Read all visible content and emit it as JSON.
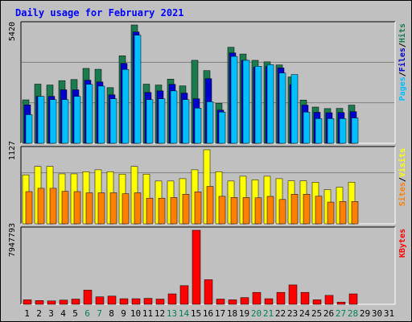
{
  "title": "Daily usage for February 2021",
  "colors": {
    "background": "#c0c0c0",
    "hits": "#1b7a4e",
    "files": "#0000cc",
    "pages": "#00bfff",
    "visits": "#ffff00",
    "sites": "#ff8000",
    "kbytes": "#ff0000",
    "weekend": "#00805a",
    "text": "#000000",
    "title": "#0000ff",
    "gridline": "#808080"
  },
  "chart_data": [
    {
      "type": "bar",
      "panel": "hits-files-pages",
      "categories": [
        "1",
        "2",
        "3",
        "4",
        "5",
        "6",
        "7",
        "8",
        "9",
        "10",
        "11",
        "12",
        "13",
        "14",
        "15",
        "16",
        "17",
        "18",
        "19",
        "20",
        "21",
        "22",
        "23",
        "24",
        "25",
        "26",
        "27",
        "28",
        "29",
        "30",
        "31"
      ],
      "ymax_label": "5420",
      "ymax": 5420,
      "legend": [
        {
          "label": "Pages",
          "color": "#00bfff"
        },
        {
          "label": "/",
          "color": "#000000"
        },
        {
          "label": "Files",
          "color": "#0000cc"
        },
        {
          "label": "/",
          "color": "#000000"
        },
        {
          "label": "Hits",
          "color": "#1b7a4e"
        }
      ],
      "series": [
        {
          "name": "Hits",
          "values": [
            1990,
            2710,
            2670,
            2870,
            2920,
            3430,
            3390,
            2550,
            4010,
            5420,
            2710,
            2670,
            2940,
            2630,
            3800,
            3330,
            1830,
            4400,
            4090,
            3800,
            3730,
            3590,
            3040,
            1980,
            1660,
            1590,
            1600,
            1750,
            null,
            null,
            null
          ]
        },
        {
          "name": "Files",
          "values": [
            1760,
            2150,
            2150,
            2450,
            2450,
            2890,
            2810,
            2220,
            3660,
            5100,
            2330,
            2400,
            2700,
            2300,
            2040,
            2960,
            1520,
            4140,
            3800,
            3490,
            3520,
            3450,
            2690,
            1750,
            1420,
            1400,
            1410,
            1450,
            null,
            null,
            null
          ]
        },
        {
          "name": "Pages",
          "values": [
            1310,
            2150,
            2000,
            2000,
            2150,
            2700,
            2620,
            2040,
            3380,
            4950,
            2000,
            2040,
            2400,
            2000,
            1610,
            1900,
            1430,
            3980,
            3800,
            3530,
            3600,
            3220,
            3150,
            1430,
            1130,
            1130,
            1130,
            1160,
            null,
            null,
            null
          ]
        }
      ]
    },
    {
      "type": "bar",
      "panel": "visits-sites",
      "categories": [
        "1",
        "2",
        "3",
        "4",
        "5",
        "6",
        "7",
        "8",
        "9",
        "10",
        "11",
        "12",
        "13",
        "14",
        "15",
        "16",
        "17",
        "18",
        "19",
        "20",
        "21",
        "22",
        "23",
        "24",
        "25",
        "26",
        "27",
        "28",
        "29",
        "30",
        "31"
      ],
      "ymax_label": "1127",
      "ymax": 1127,
      "legend": [
        {
          "label": "Sites",
          "color": "#ff8000"
        },
        {
          "label": "/",
          "color": "#000000"
        },
        {
          "label": "Visits",
          "color": "#ffff00"
        }
      ],
      "series": [
        {
          "name": "Visits",
          "values": [
            745,
            873,
            873,
            760,
            760,
            793,
            822,
            793,
            756,
            873,
            756,
            651,
            651,
            687,
            822,
            1127,
            793,
            651,
            724,
            669,
            724,
            687,
            654,
            654,
            633,
            520,
            558,
            633,
            null,
            null,
            null
          ]
        },
        {
          "name": "Sites",
          "values": [
            490,
            540,
            540,
            495,
            490,
            472,
            472,
            472,
            457,
            472,
            390,
            390,
            400,
            450,
            487,
            569,
            418,
            400,
            400,
            395,
            417,
            370,
            450,
            450,
            420,
            330,
            339,
            339,
            null,
            null,
            null
          ]
        }
      ]
    },
    {
      "type": "bar",
      "panel": "kbytes",
      "categories": [
        "1",
        "2",
        "3",
        "4",
        "5",
        "6",
        "7",
        "8",
        "9",
        "10",
        "11",
        "12",
        "13",
        "14",
        "15",
        "16",
        "17",
        "18",
        "19",
        "20",
        "21",
        "22",
        "23",
        "24",
        "25",
        "26",
        "27",
        "28",
        "29",
        "30",
        "31"
      ],
      "ymax_label": "7947793",
      "ymax": 7947793,
      "legend": [
        {
          "label": "KBytes",
          "color": "#ff0000"
        }
      ],
      "series": [
        {
          "name": "KBytes",
          "values": [
            480000,
            400000,
            360000,
            450000,
            560000,
            1520000,
            800000,
            880000,
            600000,
            600000,
            640000,
            560000,
            1120000,
            2000000,
            7947793,
            2640000,
            560000,
            480000,
            720000,
            1280000,
            600000,
            1280000,
            2080000,
            1280000,
            480000,
            960000,
            240000,
            1120000,
            null,
            null,
            null
          ]
        }
      ]
    }
  ],
  "x_axis": {
    "labels": [
      "1",
      "2",
      "3",
      "4",
      "5",
      "6",
      "7",
      "8",
      "9",
      "10",
      "11",
      "12",
      "13",
      "14",
      "15",
      "16",
      "17",
      "18",
      "19",
      "20",
      "21",
      "22",
      "23",
      "24",
      "25",
      "26",
      "27",
      "28",
      "29",
      "30",
      "31"
    ],
    "weekend_days": [
      "6",
      "7",
      "13",
      "14",
      "20",
      "21",
      "27",
      "28"
    ]
  }
}
